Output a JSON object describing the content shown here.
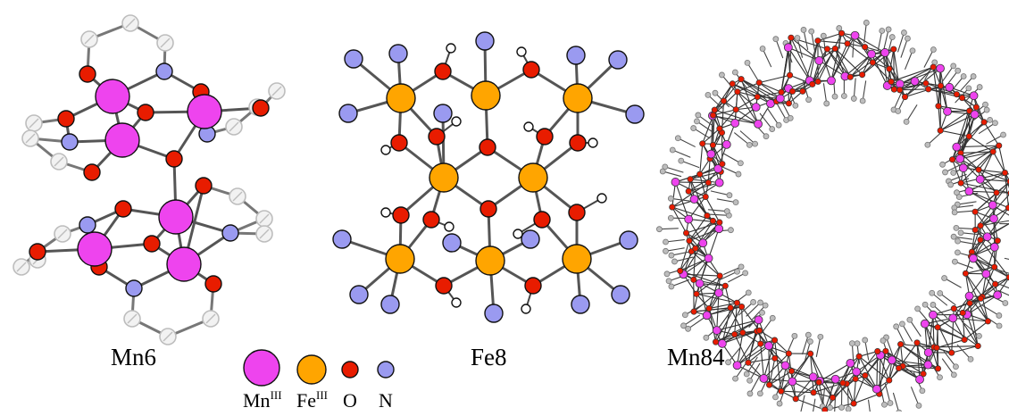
{
  "labels": {
    "mn6": "Mn6",
    "fe8": "Fe8",
    "mn84": "Mn84"
  },
  "legend": [
    {
      "text": "Mn",
      "sup": "III",
      "color": "#ee44ee"
    },
    {
      "text": "Fe",
      "sup": "III",
      "color": "#ffa500"
    },
    {
      "text": "O",
      "sup": "",
      "color": "#e81c00"
    },
    {
      "text": "N",
      "sup": "",
      "color": "#9a9af0"
    }
  ],
  "colors": {
    "mn": "#ee44ee",
    "fe": "#ffa500",
    "o": "#e81c00",
    "n": "#9a9af0",
    "h": "#ffffff",
    "c": "#e6e6e6",
    "bond": "#555555"
  }
}
